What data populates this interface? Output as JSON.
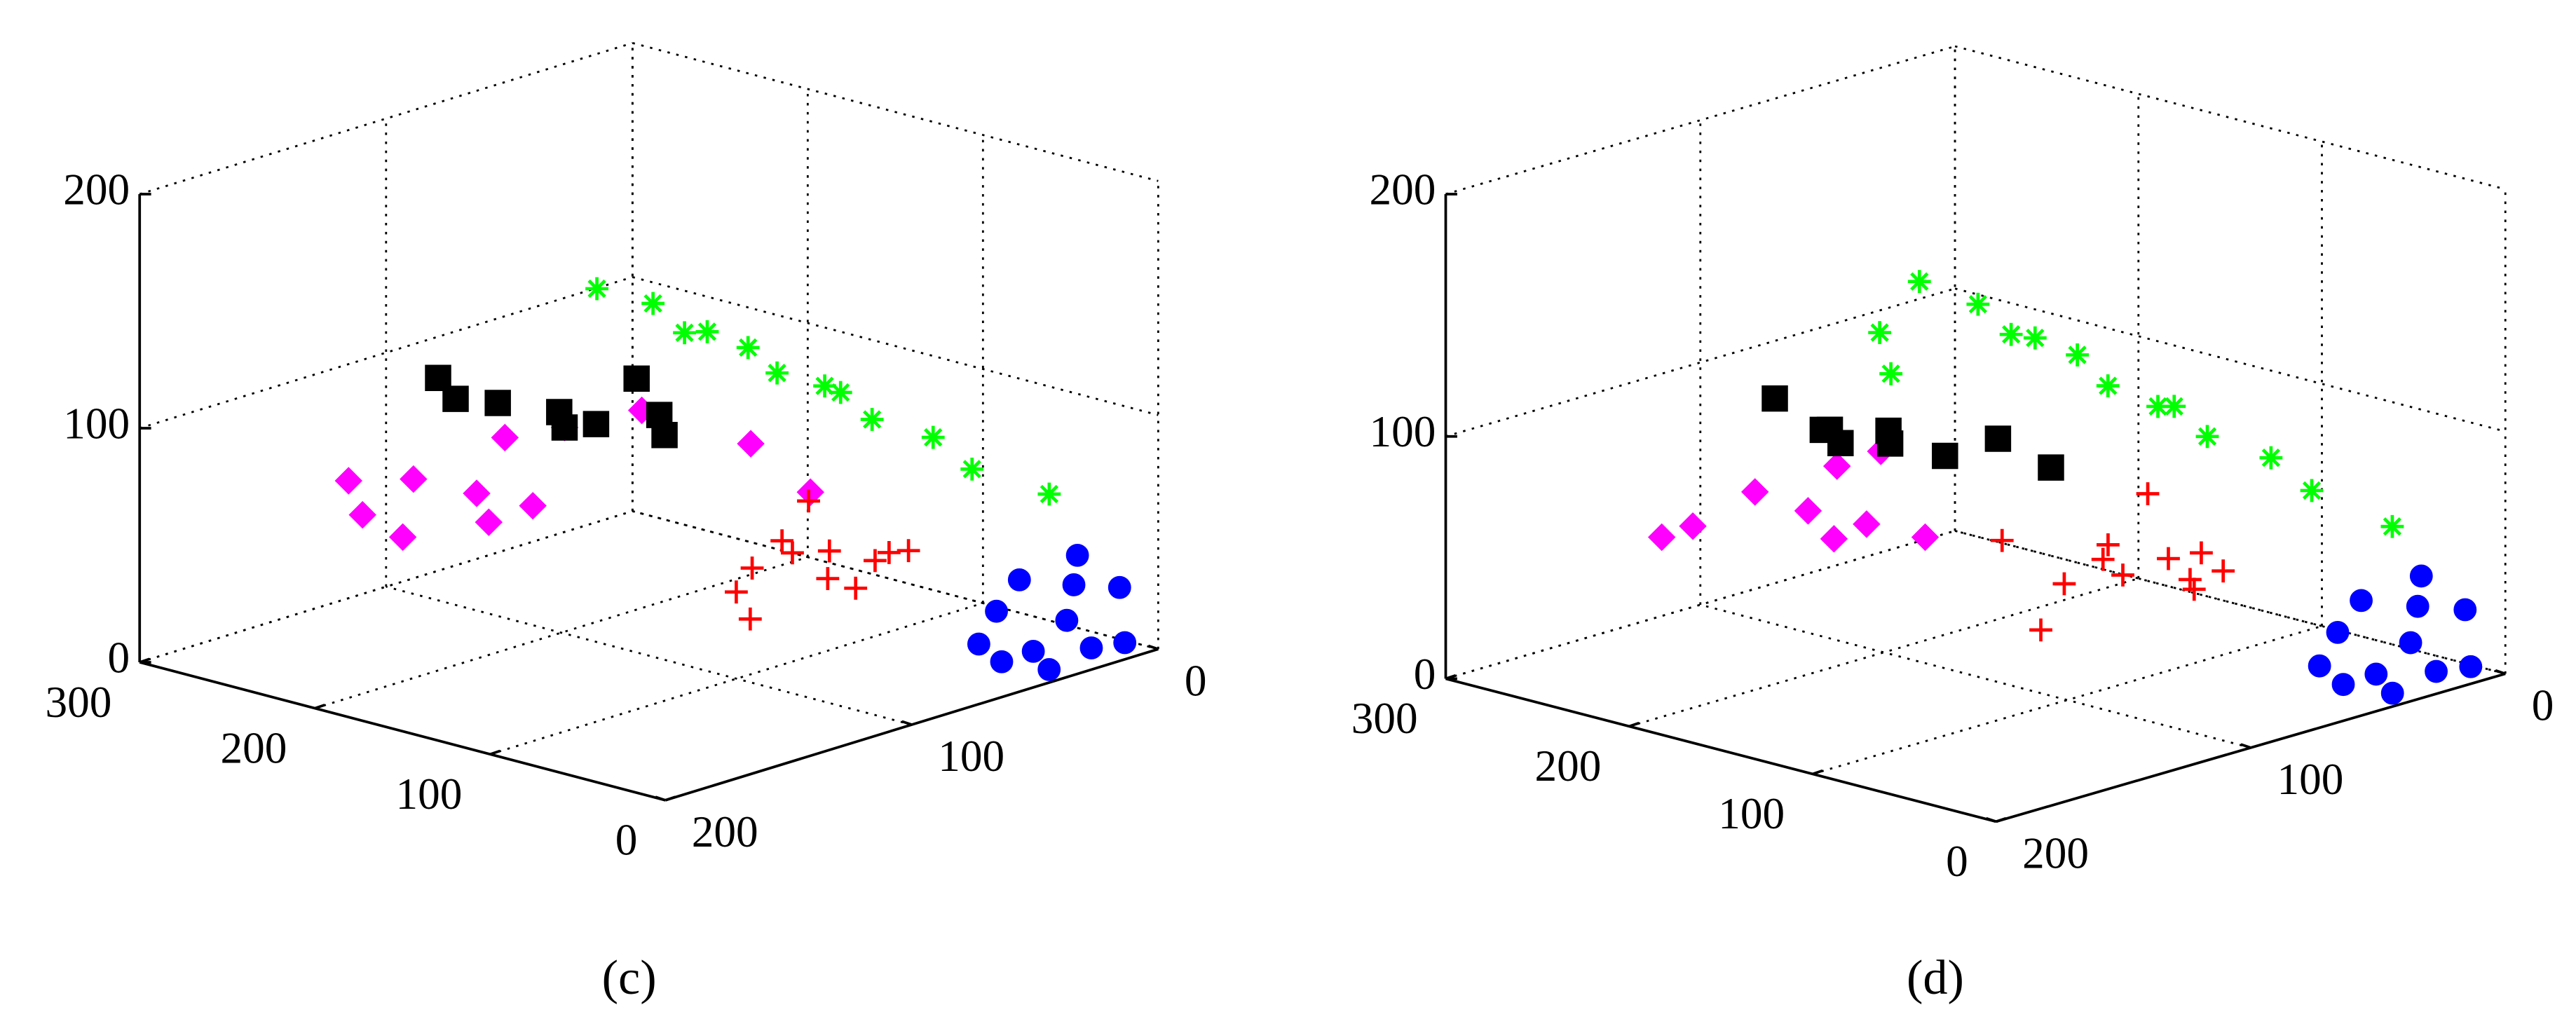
{
  "chart_data": [
    {
      "type": "scatter3d",
      "label": "(c)",
      "grid": true,
      "xlim": [
        0,
        300
      ],
      "ylim": [
        0,
        200
      ],
      "zlim": [
        0,
        200
      ],
      "xticks": [
        0,
        100,
        200,
        300
      ],
      "yticks": [
        0,
        100,
        200
      ],
      "zticks": [
        0,
        100,
        200
      ],
      "series": [
        {
          "color": "#0000ff",
          "marker": "o",
          "x": [
            5,
            10,
            20,
            8,
            15,
            25,
            3,
            12,
            30,
            18,
            6,
            22
          ],
          "y": [
            10,
            30,
            20,
            45,
            5,
            15,
            25,
            55,
            35,
            60,
            40,
            50
          ],
          "z": [
            5,
            20,
            30,
            12,
            25,
            40,
            8,
            10,
            35,
            18,
            3,
            28
          ]
        },
        {
          "color": "#00ff00",
          "marker": "*",
          "x": [
            250,
            225,
            200,
            175,
            150,
            125,
            100,
            75,
            50,
            20,
            180,
            120
          ],
          "y": [
            50,
            45,
            50,
            42,
            48,
            40,
            45,
            38,
            40,
            30,
            55,
            50
          ],
          "z": [
            121,
            118,
            112,
            108,
            104,
            98,
            93,
            88,
            80,
            72,
            118,
            105
          ]
        },
        {
          "color": "#ff00ff",
          "marker": "d",
          "x": [
            178,
            200,
            160,
            215,
            190,
            150,
            170,
            140,
            120,
            100,
            230,
            185
          ],
          "y": [
            150,
            160,
            140,
            170,
            130,
            165,
            120,
            110,
            80,
            70,
            165,
            175
          ],
          "z": [
            80,
            85,
            75,
            70,
            95,
            78,
            100,
            110,
            90,
            70,
            80,
            68
          ]
        },
        {
          "color": "#000000",
          "marker": "s",
          "x": [
            159,
            180,
            145,
            170,
            130,
            190,
            120,
            150,
            200
          ],
          "y": [
            130,
            140,
            125,
            120,
            110,
            150,
            115,
            105,
            150
          ],
          "z": [
            112,
            115,
            108,
            100,
            110,
            118,
            105,
            120,
            125
          ]
        },
        {
          "color": "#ff0000",
          "marker": "+",
          "x": [
            47,
            60,
            35,
            70,
            40,
            55,
            25,
            80,
            50,
            30,
            65,
            20
          ],
          "y": [
            100,
            110,
            90,
            115,
            120,
            95,
            105,
            85,
            130,
            80,
            125,
            95
          ],
          "z": [
            65,
            70,
            60,
            58,
            72,
            50,
            55,
            75,
            45,
            62,
            52,
            68
          ]
        }
      ]
    },
    {
      "type": "scatter3d",
      "label": "(d)",
      "grid": true,
      "xlim": [
        0,
        300
      ],
      "ylim": [
        0,
        200
      ],
      "zlim": [
        0,
        200
      ],
      "xticks": [
        0,
        100,
        200,
        300
      ],
      "yticks": [
        0,
        100,
        200
      ],
      "zticks": [
        0,
        100,
        200
      ],
      "series": [
        {
          "color": "#0000ff",
          "marker": "o",
          "x": [
            5,
            10,
            20,
            8,
            15,
            25,
            3,
            12,
            30,
            18,
            6,
            22
          ],
          "y": [
            10,
            30,
            20,
            45,
            5,
            15,
            25,
            55,
            35,
            60,
            40,
            50
          ],
          "z": [
            5,
            20,
            30,
            12,
            25,
            40,
            8,
            10,
            35,
            18,
            3,
            28
          ]
        },
        {
          "color": "#00ff00",
          "marker": "*",
          "x": [
            250,
            225,
            200,
            175,
            150,
            125,
            100,
            75,
            50,
            20,
            180,
            120,
            230,
            210
          ],
          "y": [
            50,
            45,
            50,
            42,
            48,
            40,
            45,
            38,
            40,
            30,
            55,
            50,
            80,
            90
          ],
          "z": [
            128,
            122,
            116,
            110,
            104,
            98,
            92,
            86,
            78,
            66,
            120,
            102,
            120,
            110
          ]
        },
        {
          "color": "#ff00ff",
          "marker": "d",
          "x": [
            158,
            180,
            140,
            200,
            170,
            130,
            160,
            115,
            210
          ],
          "y": [
            160,
            165,
            150,
            175,
            140,
            170,
            130,
            145,
            180
          ],
          "z": [
            85,
            90,
            80,
            75,
            95,
            82,
            100,
            78,
            70
          ]
        },
        {
          "color": "#000000",
          "marker": "s",
          "x": [
            141,
            160,
            125,
            175,
            110,
            150,
            95,
            135,
            190
          ],
          "y": [
            140,
            150,
            130,
            135,
            120,
            160,
            110,
            145,
            150
          ],
          "z": [
            110,
            115,
            105,
            102,
            112,
            120,
            100,
            118,
            122
          ]
        },
        {
          "color": "#ff0000",
          "marker": "+",
          "x": [
            31,
            50,
            15,
            60,
            25,
            40,
            10,
            70,
            45,
            20,
            35,
            80
          ],
          "y": [
            110,
            120,
            100,
            130,
            140,
            95,
            115,
            90,
            150,
            105,
            125,
            140
          ],
          "z": [
            75,
            80,
            70,
            65,
            85,
            60,
            68,
            88,
            55,
            78,
            72,
            82
          ]
        }
      ]
    }
  ]
}
